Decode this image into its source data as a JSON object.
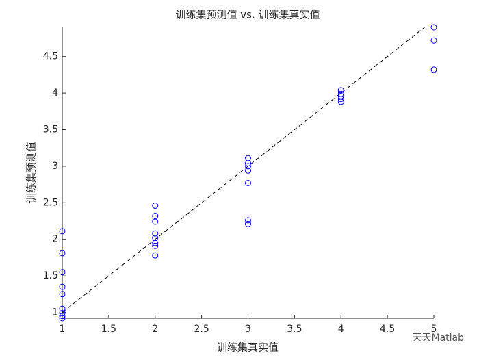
{
  "chart_data": {
    "type": "scatter",
    "title": "训练集预测值 vs. 训练集真实值",
    "x_label": "训练集真实值",
    "y_label": "训练集预测值",
    "watermark": "天天Matlab",
    "x": [
      1,
      1,
      1,
      1,
      1,
      1,
      1,
      1,
      1,
      2,
      2,
      2,
      2,
      2,
      2,
      2,
      2,
      3,
      3,
      3,
      3,
      3,
      3,
      3,
      4,
      4,
      4,
      4,
      4,
      5,
      5,
      5
    ],
    "values": [
      2.11,
      1.81,
      1.55,
      1.35,
      1.25,
      1.05,
      0.99,
      0.95,
      0.92,
      2.46,
      2.32,
      2.24,
      2.08,
      2.02,
      1.95,
      1.91,
      1.78,
      3.11,
      3.04,
      3.0,
      2.94,
      2.77,
      2.26,
      2.21,
      4.04,
      3.99,
      3.96,
      3.92,
      3.88,
      4.9,
      4.72,
      4.32
    ],
    "color": "#0000ff",
    "xlim": [
      1,
      5
    ],
    "ylim": [
      0.92,
      4.9
    ],
    "xticks": [
      1,
      1.5,
      2,
      2.5,
      3,
      3.5,
      4,
      4.5,
      5
    ],
    "yticks": [
      1,
      1.5,
      2,
      2.5,
      3,
      3.5,
      4,
      4.5
    ],
    "reference_line": true,
    "grid": false
  }
}
